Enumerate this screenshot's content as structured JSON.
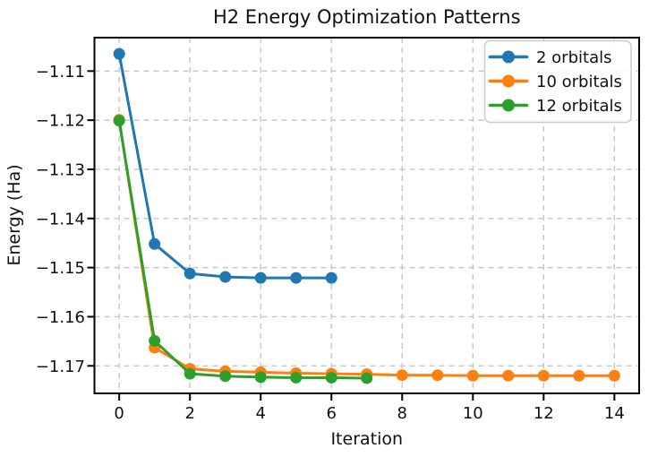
{
  "figure": {
    "title": "H2 Energy Optimization Patterns",
    "xlabel": "Iteration",
    "ylabel": "Energy (Ha)"
  },
  "colors": {
    "series_blue": "#1f77b4",
    "series_orange": "#ff7f0e",
    "series_green": "#2ca02c",
    "grid": "#c6c6c6",
    "spine": "#000000",
    "text": "#111111",
    "legend_border": "#cccccc",
    "legend_bg": "#ffffff"
  },
  "chart_data": {
    "type": "line",
    "title": "H2 Energy Optimization Patterns",
    "xlabel": "Iteration",
    "ylabel": "Energy (Ha)",
    "xlim": [
      -0.7,
      14.7
    ],
    "ylim": [
      -1.1756,
      -1.1032
    ],
    "xticks": [
      0,
      2,
      4,
      6,
      8,
      10,
      12,
      14
    ],
    "xtick_labels": [
      "0",
      "2",
      "4",
      "6",
      "8",
      "10",
      "12",
      "14"
    ],
    "yticks": [
      -1.11,
      -1.12,
      -1.13,
      -1.14,
      -1.15,
      -1.16,
      -1.17
    ],
    "ytick_labels": [
      "−1.11",
      "−1.12",
      "−1.13",
      "−1.14",
      "−1.15",
      "−1.16",
      "−1.17"
    ],
    "grid": true,
    "grid_style": "dashed",
    "marker": "circle",
    "legend": {
      "position": "upper right",
      "entries": [
        "2 orbitals",
        "10 orbitals",
        "12 orbitals"
      ]
    },
    "series": [
      {
        "name": "2 orbitals",
        "color": "#1f77b4",
        "x": [
          0,
          1,
          2,
          3,
          4,
          5,
          6
        ],
        "y": [
          -1.1065,
          -1.1452,
          -1.1512,
          -1.1519,
          -1.1521,
          -1.1521,
          -1.1521
        ]
      },
      {
        "name": "10 orbitals",
        "color": "#ff7f0e",
        "x": [
          0,
          1,
          2,
          3,
          4,
          5,
          6,
          7,
          8,
          9,
          10,
          11,
          12,
          13,
          14
        ],
        "y": [
          -1.1199,
          -1.1663,
          -1.1706,
          -1.1711,
          -1.1713,
          -1.1715,
          -1.1716,
          -1.1717,
          -1.1719,
          -1.1719,
          -1.172,
          -1.172,
          -1.172,
          -1.172,
          -1.172
        ]
      },
      {
        "name": "12 orbitals",
        "color": "#2ca02c",
        "x": [
          0,
          1,
          2,
          3,
          4,
          5,
          6,
          7
        ],
        "y": [
          -1.1201,
          -1.1649,
          -1.1716,
          -1.1721,
          -1.1723,
          -1.1724,
          -1.1724,
          -1.1725
        ]
      }
    ]
  }
}
